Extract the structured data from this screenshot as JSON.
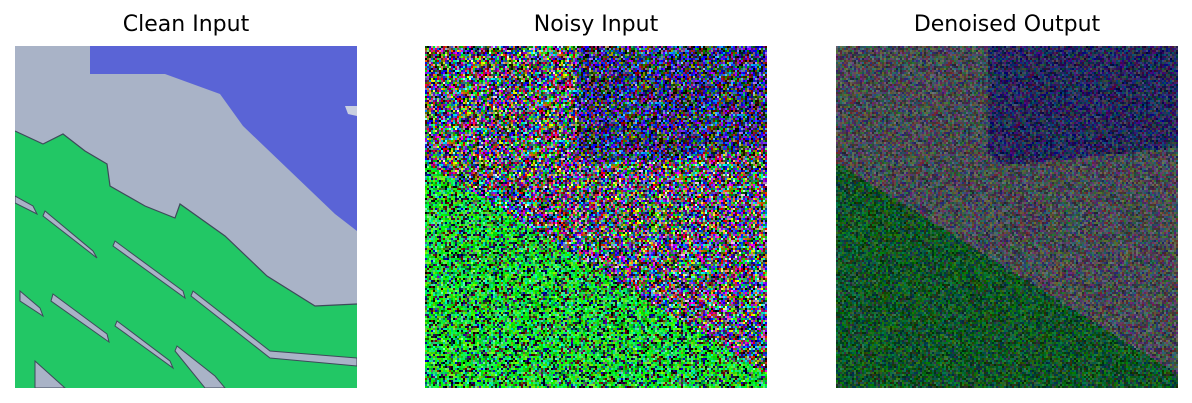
{
  "panels": [
    {
      "title": "Clean Input",
      "image": "clean-image"
    },
    {
      "title": "Noisy Input",
      "image": "noisy-image"
    },
    {
      "title": "Denoised Output",
      "image": "denoised-image"
    }
  ],
  "colors": {
    "background": "#ffffff",
    "clean_gray": "#a9b3c7",
    "clean_blue": "#5a64d6",
    "clean_green": "#1fc463",
    "edge_dark": "#4a5568"
  }
}
